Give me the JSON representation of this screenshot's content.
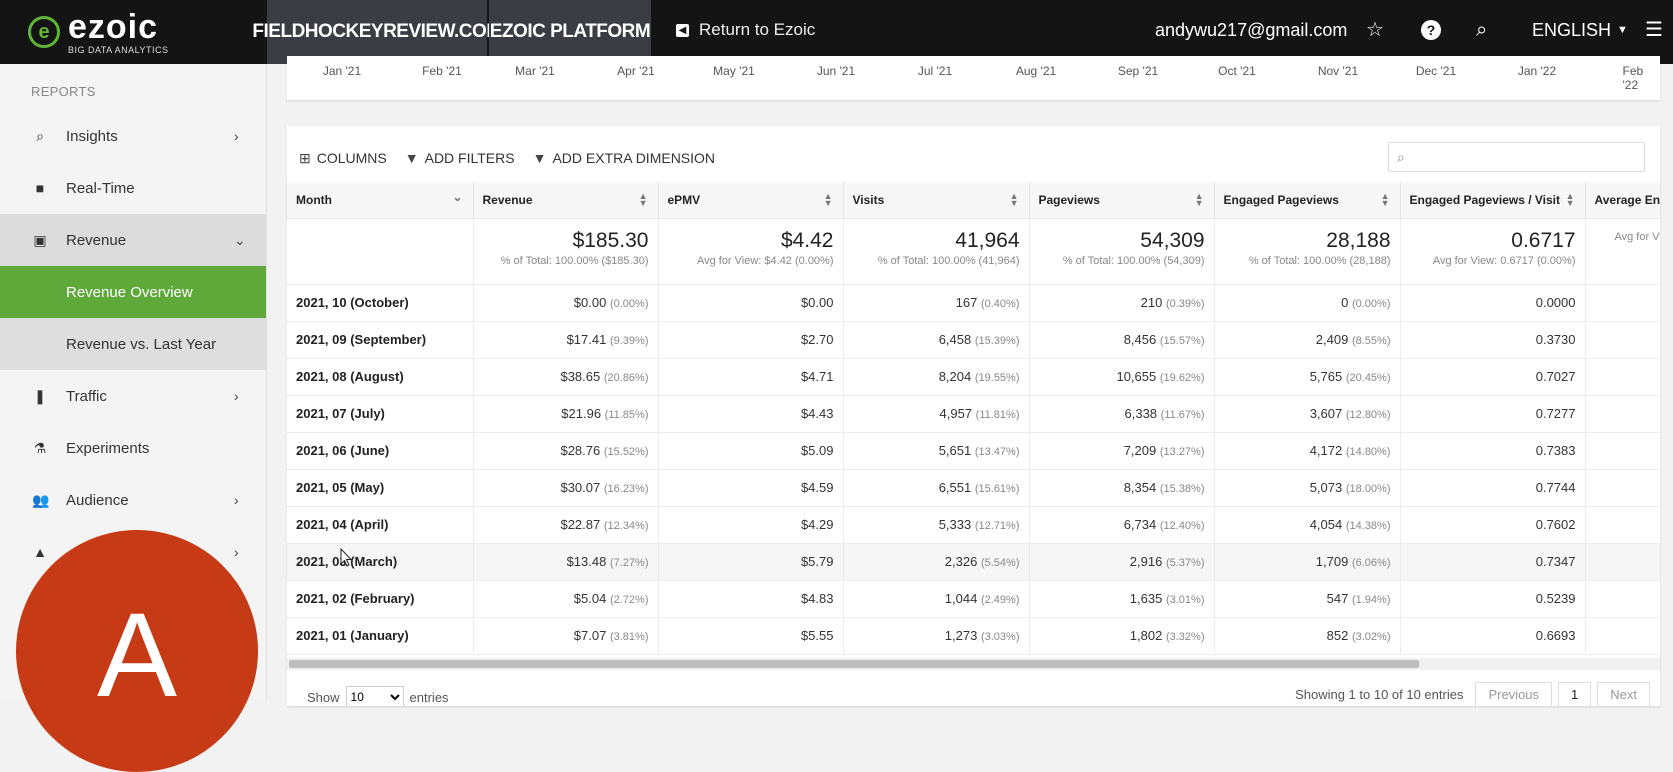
{
  "header": {
    "logo_word": "ezoic",
    "logo_tag": "BIG DATA ANALYTICS",
    "tab_site": "FIELDHOCKEYREVIEW.COM",
    "tab_platform": "EZOIC PLATFORM",
    "return_label": "Return to Ezoic",
    "email": "andywu217@gmail.com",
    "language": "ENGLISH"
  },
  "sidebar": {
    "heading": "REPORTS",
    "items": [
      {
        "label": "Insights",
        "icon": "search-icon"
      },
      {
        "label": "Real-Time",
        "icon": "video-icon"
      },
      {
        "label": "Revenue",
        "icon": "money-icon"
      },
      {
        "label": "Revenue Overview"
      },
      {
        "label": "Revenue vs. Last Year"
      },
      {
        "label": "Traffic",
        "icon": "traffic-light-icon"
      },
      {
        "label": "Experiments",
        "icon": "flask-icon"
      },
      {
        "label": "Audience",
        "icon": "people-icon"
      }
    ],
    "avatar_letter": "A"
  },
  "chart": {
    "months": [
      "Jan '21",
      "Feb '21",
      "Mar '21",
      "Apr '21",
      "May '21",
      "Jun '21",
      "Jul '21",
      "Aug '21",
      "Sep '21",
      "Oct '21",
      "Nov '21",
      "Dec '21",
      "Jan '22",
      "Feb '22"
    ]
  },
  "toolbar": {
    "columns": "COLUMNS",
    "add_filters": "ADD FILTERS",
    "add_dimension": "ADD EXTRA DIMENSION",
    "search_placeholder": ""
  },
  "table": {
    "headers": [
      "Month",
      "Revenue",
      "ePMV",
      "Visits",
      "Pageviews",
      "Engaged Pageviews",
      "Engaged Pageviews / Visit",
      "Average En"
    ],
    "totals": [
      {
        "value": "",
        "sub": ""
      },
      {
        "value": "$185.30",
        "sub": "% of Total: 100.00% ($185.30)"
      },
      {
        "value": "$4.42",
        "sub": "Avg for View: $4.42 (0.00%)"
      },
      {
        "value": "41,964",
        "sub": "% of Total: 100.00% (41,964)"
      },
      {
        "value": "54,309",
        "sub": "% of Total: 100.00% (54,309)"
      },
      {
        "value": "28,188",
        "sub": "% of Total: 100.00% (28,188)"
      },
      {
        "value": "0.6717",
        "sub": "Avg for View: 0.6717 (0.00%)"
      },
      {
        "value": "",
        "sub": "Avg for V"
      }
    ],
    "rows": [
      {
        "month": "2021, 10 (October)",
        "rev": "$0.00",
        "rev_p": "(0.00%)",
        "epmv": "$0.00",
        "visits": "167",
        "visits_p": "(0.40%)",
        "pv": "210",
        "pv_p": "(0.39%)",
        "epv": "0",
        "epv_p": "(0.00%)",
        "epvv": "0.0000"
      },
      {
        "month": "2021, 09 (September)",
        "rev": "$17.41",
        "rev_p": "(9.39%)",
        "epmv": "$2.70",
        "visits": "6,458",
        "visits_p": "(15.39%)",
        "pv": "8,456",
        "pv_p": "(15.57%)",
        "epv": "2,409",
        "epv_p": "(8.55%)",
        "epvv": "0.3730"
      },
      {
        "month": "2021, 08 (August)",
        "rev": "$38.65",
        "rev_p": "(20.86%)",
        "epmv": "$4.71",
        "visits": "8,204",
        "visits_p": "(19.55%)",
        "pv": "10,655",
        "pv_p": "(19.62%)",
        "epv": "5,765",
        "epv_p": "(20.45%)",
        "epvv": "0.7027"
      },
      {
        "month": "2021, 07 (July)",
        "rev": "$21.96",
        "rev_p": "(11.85%)",
        "epmv": "$4.43",
        "visits": "4,957",
        "visits_p": "(11.81%)",
        "pv": "6,338",
        "pv_p": "(11.67%)",
        "epv": "3,607",
        "epv_p": "(12.80%)",
        "epvv": "0.7277"
      },
      {
        "month": "2021, 06 (June)",
        "rev": "$28.76",
        "rev_p": "(15.52%)",
        "epmv": "$5.09",
        "visits": "5,651",
        "visits_p": "(13.47%)",
        "pv": "7,209",
        "pv_p": "(13.27%)",
        "epv": "4,172",
        "epv_p": "(14.80%)",
        "epvv": "0.7383"
      },
      {
        "month": "2021, 05 (May)",
        "rev": "$30.07",
        "rev_p": "(16.23%)",
        "epmv": "$4.59",
        "visits": "6,551",
        "visits_p": "(15.61%)",
        "pv": "8,354",
        "pv_p": "(15.38%)",
        "epv": "5,073",
        "epv_p": "(18.00%)",
        "epvv": "0.7744"
      },
      {
        "month": "2021, 04 (April)",
        "rev": "$22.87",
        "rev_p": "(12.34%)",
        "epmv": "$4.29",
        "visits": "5,333",
        "visits_p": "(12.71%)",
        "pv": "6,734",
        "pv_p": "(12.40%)",
        "epv": "4,054",
        "epv_p": "(14.38%)",
        "epvv": "0.7602"
      },
      {
        "month": "2021, 03 (March)",
        "rev": "$13.48",
        "rev_p": "(7.27%)",
        "epmv": "$5.79",
        "visits": "2,326",
        "visits_p": "(5.54%)",
        "pv": "2,916",
        "pv_p": "(5.37%)",
        "epv": "1,709",
        "epv_p": "(6.06%)",
        "epvv": "0.7347"
      },
      {
        "month": "2021, 02 (February)",
        "rev": "$5.04",
        "rev_p": "(2.72%)",
        "epmv": "$4.83",
        "visits": "1,044",
        "visits_p": "(2.49%)",
        "pv": "1,635",
        "pv_p": "(3.01%)",
        "epv": "547",
        "epv_p": "(1.94%)",
        "epvv": "0.5239"
      },
      {
        "month": "2021, 01 (January)",
        "rev": "$7.07",
        "rev_p": "(3.81%)",
        "epmv": "$5.55",
        "visits": "1,273",
        "visits_p": "(3.03%)",
        "pv": "1,802",
        "pv_p": "(3.32%)",
        "epv": "852",
        "epv_p": "(3.02%)",
        "epvv": "0.6693"
      }
    ]
  },
  "footer": {
    "show": "Show",
    "entries_value": "10",
    "entries": "entries",
    "info": "Showing 1 to 10 of 10 entries",
    "previous": "Previous",
    "page": "1",
    "next": "Next"
  },
  "colors": {
    "accent_green": "#5fa83a",
    "avatar": "#c63a15",
    "topbar": "#141414"
  }
}
